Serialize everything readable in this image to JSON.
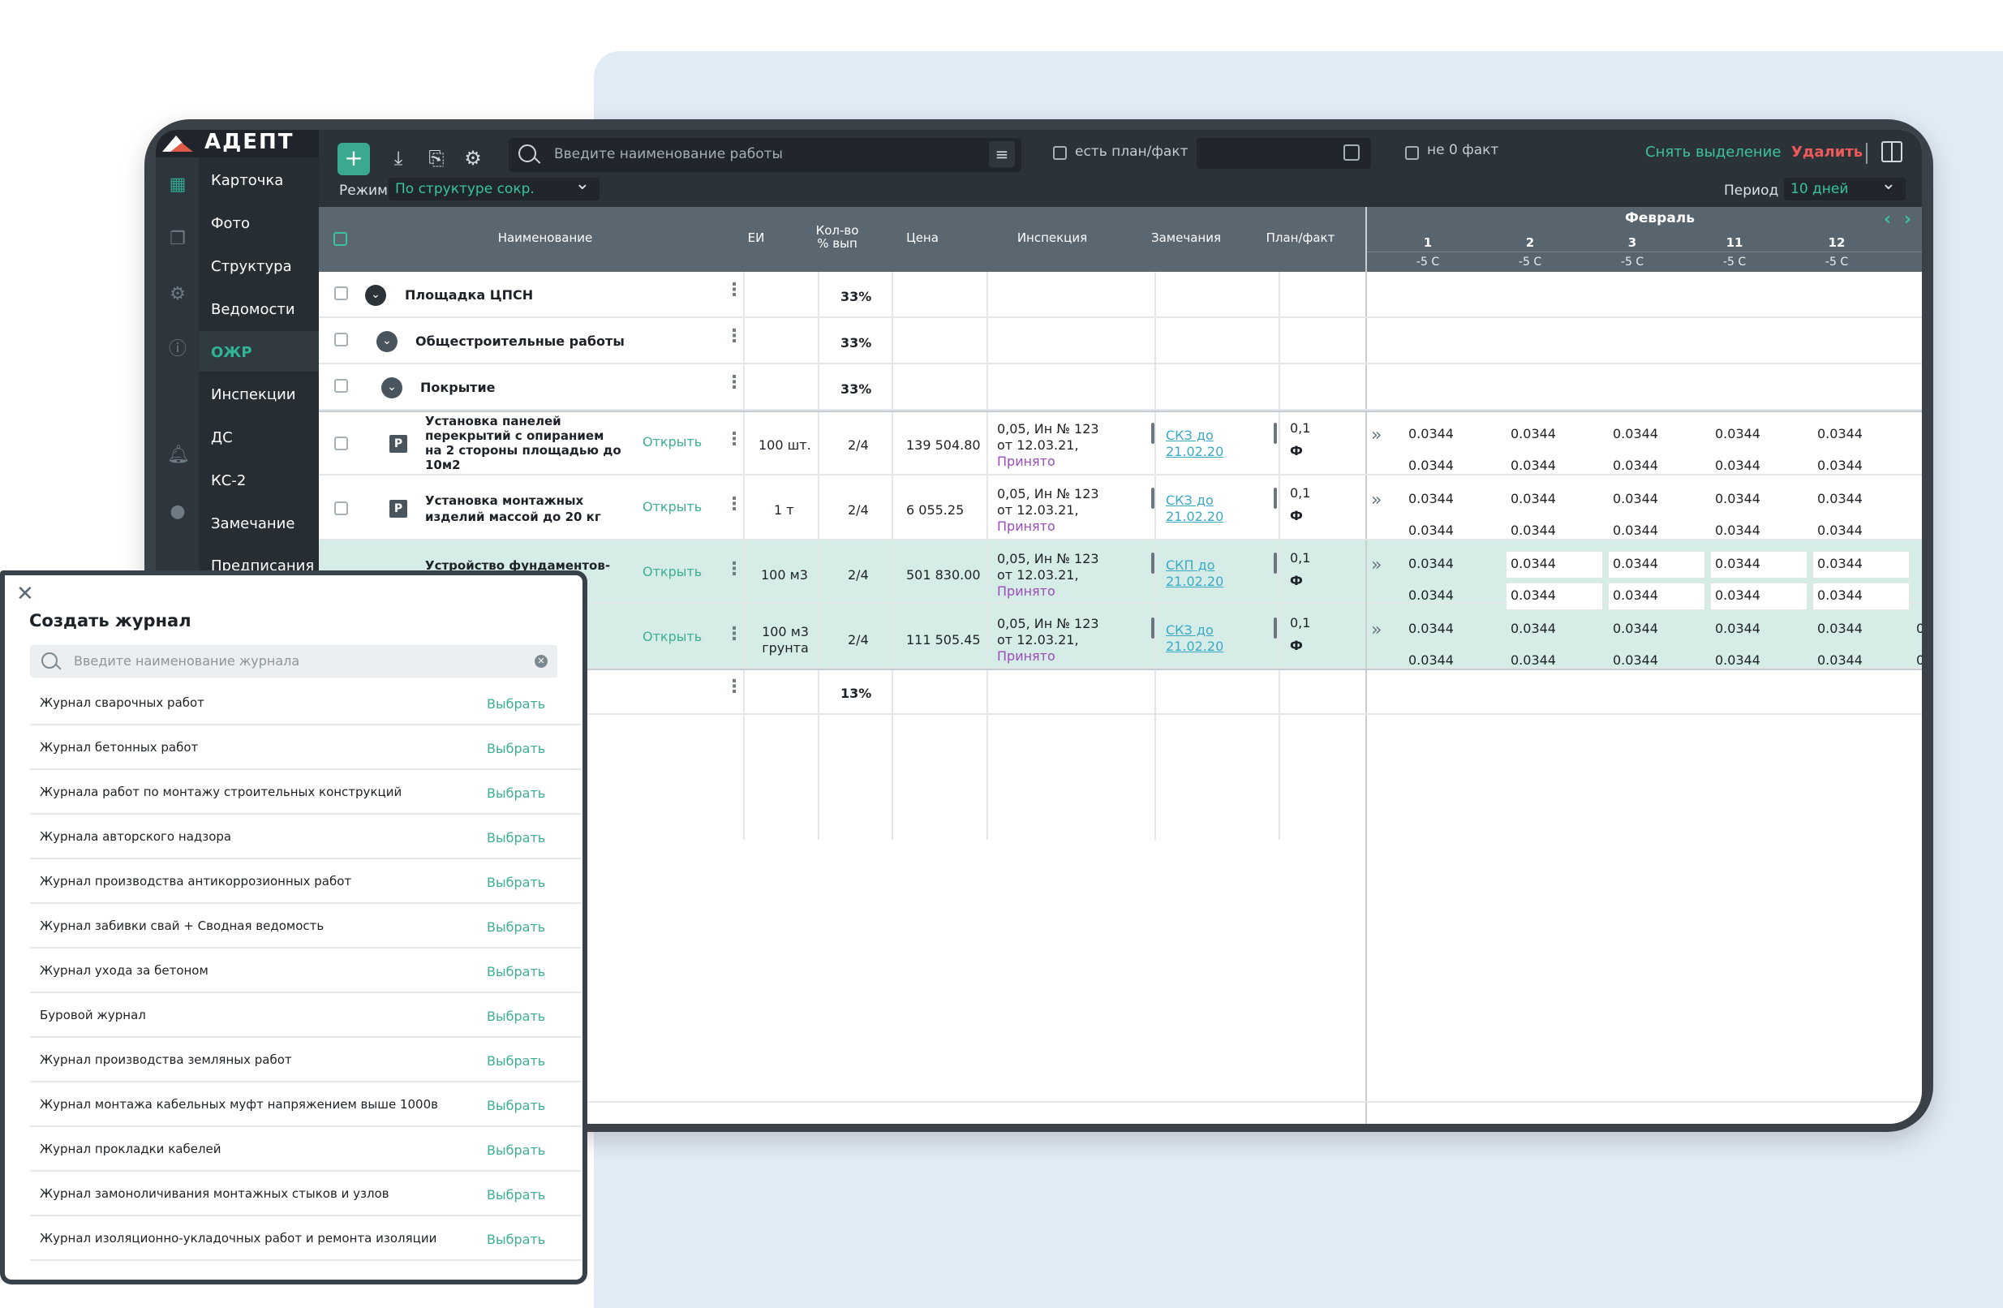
{
  "app": {
    "logo_text": "АДЕПТ"
  },
  "menu": {
    "items": [
      "Карточка",
      "Фото",
      "Структура",
      "Ведомости",
      "ОЖР",
      "Инспекции",
      "ДС",
      "КС-2",
      "Замечание",
      "Предписания"
    ],
    "active": "ОЖР"
  },
  "rail_icons": [
    "building-icon",
    "documents-icon",
    "gear-icon",
    "info-icon",
    "bell-icon",
    "user-icon"
  ],
  "toolbar": {
    "add_label": "+",
    "search_placeholder": "Введите наименование работы",
    "plan_fact_label": "есть план/факт",
    "not_zero_label": "не 0 факт",
    "clear_selection": "Снять выделение",
    "delete": "Удалить",
    "mode_label": "Режим",
    "mode_value": "По структуре сокр.",
    "period_label": "Период",
    "period_value": "10 дней"
  },
  "table": {
    "headers": {
      "name": "Наименование",
      "unit": "ЕИ",
      "qty_l1": "Кол-во",
      "qty_l2": "% вып",
      "price": "Цена",
      "inspection": "Инспекция",
      "remarks": "Замечания",
      "planfact": "План/факт"
    },
    "month": "Февраль",
    "days": [
      "1",
      "2",
      "3",
      "11",
      "12"
    ],
    "temps": [
      "-5 С",
      "-5 С",
      "-5 С",
      "-5 С",
      "-5 С"
    ],
    "group_rows": [
      {
        "name": "Площадка ЦПСН",
        "percent": "33%"
      },
      {
        "name": "Общестроительные работы",
        "percent": "33%"
      },
      {
        "name": "Покрытие",
        "percent": "33%"
      }
    ],
    "work_rows": [
      {
        "name_l1": "Установка панелей",
        "name_l2": "перекрытий с опиранием",
        "name_l3": "на 2 стороны площадью до",
        "name_l4": "10м2",
        "badge": "P",
        "open": "Открыть",
        "unit": "100 шт.",
        "qty": "2/4",
        "price": "139 504.80",
        "insp_l1": "0,05, Ин № 123",
        "insp_l2": "от 12.03.21,",
        "insp_status": "Принято",
        "remark_l1": "СКЗ до",
        "remark_l2": "21.02.20",
        "pf_top": "0,1",
        "pf_bottom": "Ф"
      },
      {
        "name_l1": "Установка монтажных",
        "name_l2": "изделий массой до 20 кг",
        "badge": "P",
        "open": "Открыть",
        "unit": "1 т",
        "qty": "2/4",
        "price": "6 055.25",
        "insp_l1": "0,05, Ин № 123",
        "insp_l2": "от 12.03.21,",
        "insp_status": "Принято",
        "remark_l1": "СКЗ до",
        "remark_l2": "21.02.20",
        "pf_top": "0,1",
        "pf_bottom": "Ф"
      },
      {
        "name_l1": "Устройство фундаментов-",
        "open": "Открыть",
        "unit": "100 м3",
        "qty": "2/4",
        "price": "501 830.00",
        "insp_l1": "0,05, Ин № 123",
        "insp_l2": "от 12.03.21,",
        "insp_status": "Принято",
        "remark_l1": "СКП до",
        "remark_l2": "21.02.20",
        "pf_top": "0,1",
        "pf_bottom": "Ф"
      },
      {
        "open": "Открыть",
        "unit_l1": "100 м3",
        "unit_l2": "грунта",
        "qty": "2/4",
        "price": "111 505.45",
        "insp_l1": "0,05, Ин № 123",
        "insp_l2": "от 12.03.21,",
        "insp_status": "Принято",
        "remark_l1": "СКЗ до",
        "remark_l2": "21.02.20",
        "pf_top": "0,1",
        "pf_bottom": "Ф"
      }
    ],
    "last_row_percent": "13%",
    "cell_value": "0.0344",
    "partial_value": "0."
  },
  "modal": {
    "title": "Создать журнал",
    "search_placeholder": "Введите наименование журнала",
    "select_label": "Выбрать",
    "items": [
      "Журнал сварочных работ",
      "Журнал бетонных работ",
      "Журнала работ по монтажу строительных конструкций",
      "Журнала авторского надзора",
      "Журнал производства антикоррозионных работ",
      "Журнал забивки свай + Сводная ведомость",
      "Журнал ухода за бетоном",
      "Буровой журнал",
      "Журнал производства земляных работ",
      "Журнал монтажа кабельных муфт напряжением выше 1000в",
      "Журнал прокладки кабелей",
      "Журнал замоноличивания монтажных стыков и узлов",
      "Журнал изоляционно-укладочных работ и ремонта изоляции"
    ]
  },
  "colors": {
    "accent": "#3aa98f",
    "danger": "#ee5a5a",
    "dark": "#2b3238",
    "selected_row": "#d6ece7"
  }
}
